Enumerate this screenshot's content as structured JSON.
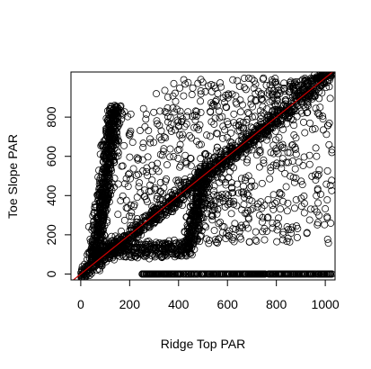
{
  "chart_data": {
    "type": "scatter",
    "title": "",
    "xlabel": "Ridge Top PAR",
    "ylabel": "Toe Slope PAR",
    "xlim": [
      -40,
      1040
    ],
    "ylim": [
      -30,
      1030
    ],
    "xticks": [
      0,
      200,
      400,
      600,
      800,
      1000
    ],
    "yticks": [
      0,
      200,
      400,
      600,
      800
    ],
    "grid": false,
    "legend": "none",
    "marker": "open-circle",
    "point_color": "#000000",
    "reference_line": {
      "type": "identity",
      "slope": 1,
      "intercept": 0,
      "color": "#cc0000"
    },
    "clusters": [
      {
        "name": "",
        "description_shape": "identity-band",
        "x_range": [
          0,
          1030
        ],
        "y_offset_spread": 25,
        "approx_points": 1100
      },
      {
        "name": "",
        "description_shape": "steep-arm",
        "x_range": [
          60,
          170
        ],
        "y_range": [
          60,
          860
        ],
        "approx_points": 700
      },
      {
        "name": "",
        "description_shape": "low-flat-arm",
        "x_range": [
          100,
          460
        ],
        "y_range": [
          90,
          160
        ],
        "approx_points": 300
      },
      {
        "name": "",
        "description_shape": "right-vertical-arm",
        "x_range": [
          440,
          520
        ],
        "y_range": [
          120,
          560
        ],
        "approx_points": 300
      },
      {
        "name": "",
        "description_shape": "zero-row",
        "x_range": [
          250,
          1030
        ],
        "y_value": 0,
        "approx_points": 400
      },
      {
        "name": "",
        "description_shape": "upper-fill",
        "x_range": [
          130,
          1000
        ],
        "y_range": [
          400,
          1000
        ],
        "approx_points": 450
      },
      {
        "name": "",
        "description_shape": "below-diagonal-fill",
        "x_range": [
          450,
          1030
        ],
        "y_range": [
          150,
          900
        ],
        "approx_points": 350
      }
    ]
  }
}
